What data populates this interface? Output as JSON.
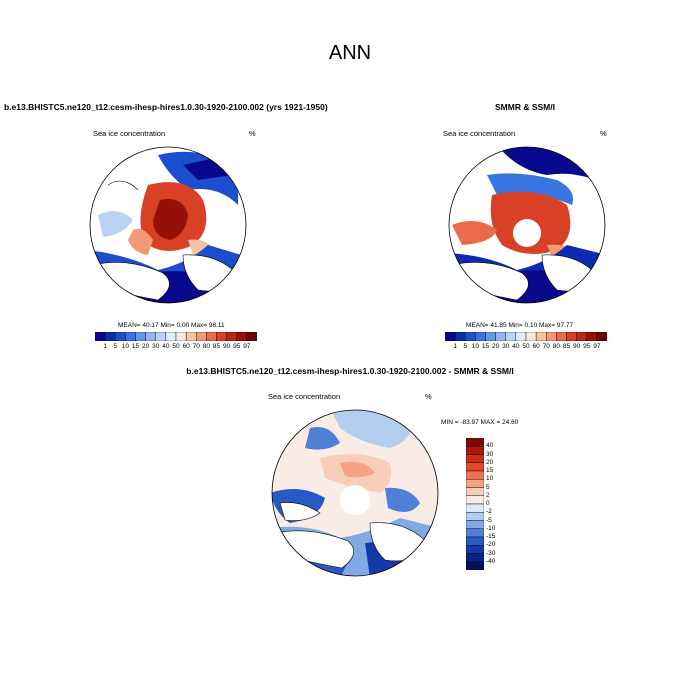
{
  "main_title": "ANN",
  "panels": [
    {
      "title": "b.e13.BHISTC5.ne120_t12.cesm-ihesp-hires1.0.30-1920-2100.002 (yrs 1921-1950)",
      "variable": "Sea ice concentration",
      "units": "%",
      "stats": "MEAN=  40.17  Min=   0.00  Max=  98.11",
      "colorbar_labels": [
        "1",
        "5",
        "10",
        "15",
        "20",
        "30",
        "40",
        "50",
        "60",
        "70",
        "80",
        "85",
        "90",
        "95",
        "97"
      ]
    },
    {
      "title": "SMMR & SSM/I",
      "variable": "Sea ice concentration",
      "units": "%",
      "stats": "MEAN=  41.85  Min=   0.10  Max=  97.77",
      "colorbar_labels": [
        "1",
        "5",
        "10",
        "15",
        "20",
        "30",
        "40",
        "50",
        "60",
        "70",
        "80",
        "85",
        "90",
        "95",
        "97"
      ]
    },
    {
      "title": "b.e13.BHISTC5.ne120_t12.cesm-ihesp-hires1.0.30-1920-2100.002 - SMMR & SSM/I",
      "variable": "Sea ice concentration",
      "units": "%",
      "stats": "MIN = -83.97 MAX =  24.60",
      "colorbar_labels": [
        "40",
        "30",
        "20",
        "15",
        "10",
        "5",
        "2",
        "0",
        "-2",
        "-5",
        "-10",
        "-15",
        "-20",
        "-30",
        "-40"
      ]
    }
  ],
  "colors": {
    "abs_scale": [
      "#08088c",
      "#0c2bb0",
      "#1b4fd0",
      "#3a74e0",
      "#6496ea",
      "#93b6f0",
      "#bcd2f5",
      "#e3edf9",
      "#fbe8dc",
      "#f7c3a6",
      "#f29a77",
      "#ea6b4a",
      "#d94127",
      "#bf2413",
      "#961008",
      "#6e0808"
    ],
    "diff_scale": [
      "#7c0a05",
      "#a8190c",
      "#cb2c17",
      "#e2472a",
      "#ef7250",
      "#f5a384",
      "#f9cdb8",
      "#f7ede6",
      "#dce8f6",
      "#b2cdee",
      "#82a9e4",
      "#527fd6",
      "#2a58c4",
      "#133aa8",
      "#0a2186",
      "#060f5c"
    ],
    "land": "#ffffff",
    "coast": "#000000"
  }
}
